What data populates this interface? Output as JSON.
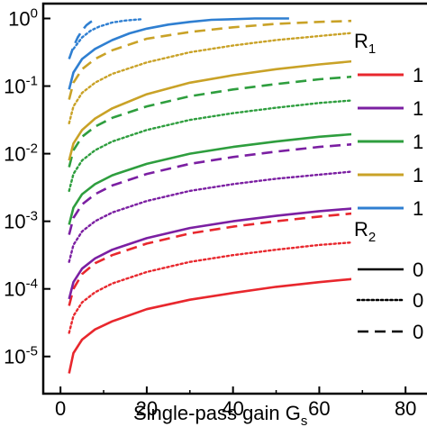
{
  "chart_data": {
    "type": "line",
    "xlabel": "Single-pass gain G",
    "xlabel_subscript": "s",
    "y_scale": "log",
    "xlim": [
      -4,
      95
    ],
    "ylim_log10": [
      -5.55,
      0.22
    ],
    "x_ticks": [
      {
        "value": 0,
        "label": "0"
      },
      {
        "value": 20,
        "label": "20"
      },
      {
        "value": 40,
        "label": "40"
      },
      {
        "value": 60,
        "label": "60"
      },
      {
        "value": 80,
        "label": "80"
      }
    ],
    "y_ticks": [
      {
        "log10": 0,
        "base": "10",
        "exp": "0"
      },
      {
        "log10": -1,
        "base": "10",
        "exp": "-1"
      },
      {
        "log10": -2,
        "base": "10",
        "exp": "-2"
      },
      {
        "log10": -3,
        "base": "10",
        "exp": "-3"
      },
      {
        "log10": -4,
        "base": "10",
        "exp": "-4"
      },
      {
        "log10": -5,
        "base": "10",
        "exp": "-5"
      }
    ],
    "grid": false,
    "legend": {
      "position": "right",
      "r1_title": "R",
      "r1_sub": "1",
      "r2_title": "R",
      "r2_sub": "2",
      "r1_entries": [
        {
          "label": "1",
          "color": "#e8272d"
        },
        {
          "label": "1",
          "color": "#7b1fa2"
        },
        {
          "label": "1",
          "color": "#2e9e3e"
        },
        {
          "label": "1",
          "color": "#c9a227"
        },
        {
          "label": "1",
          "color": "#2f7fd1"
        }
      ],
      "r2_entries": [
        {
          "label": "0",
          "dash": "solid"
        },
        {
          "label": "0",
          "dash": "dotted"
        },
        {
          "label": "0",
          "dash": "dashed"
        }
      ]
    },
    "series": [
      {
        "color": "#e8272d",
        "dash": "solid",
        "x": [
          2,
          3,
          5,
          8,
          12,
          20,
          30,
          40,
          50,
          60,
          70
        ],
        "y": [
          -5.25,
          -4.95,
          -4.75,
          -4.6,
          -4.48,
          -4.3,
          -4.16,
          -4.06,
          -3.97,
          -3.9,
          -3.84
        ]
      },
      {
        "color": "#e8272d",
        "dash": "dotted",
        "x": [
          2,
          3,
          5,
          8,
          12,
          20,
          30,
          40,
          50,
          60,
          70
        ],
        "y": [
          -4.65,
          -4.4,
          -4.2,
          -4.05,
          -3.92,
          -3.75,
          -3.6,
          -3.5,
          -3.42,
          -3.35,
          -3.3
        ]
      },
      {
        "color": "#e8272d",
        "dash": "dashed",
        "x": [
          2,
          3,
          5,
          8,
          12,
          20,
          30,
          40,
          50,
          60,
          70
        ],
        "y": [
          -4.25,
          -4.0,
          -3.78,
          -3.62,
          -3.5,
          -3.33,
          -3.18,
          -3.08,
          -3.0,
          -2.93,
          -2.87
        ]
      },
      {
        "color": "#7b1fa2",
        "dash": "solid",
        "x": [
          2,
          3,
          5,
          8,
          12,
          20,
          30,
          40,
          50,
          60,
          70
        ],
        "y": [
          -4.15,
          -3.9,
          -3.7,
          -3.55,
          -3.42,
          -3.25,
          -3.1,
          -3.0,
          -2.92,
          -2.85,
          -2.8
        ]
      },
      {
        "color": "#7b1fa2",
        "dash": "dotted",
        "x": [
          2,
          3,
          5,
          8,
          12,
          20,
          30,
          40,
          50,
          60,
          70
        ],
        "y": [
          -3.6,
          -3.35,
          -3.15,
          -3.0,
          -2.87,
          -2.7,
          -2.55,
          -2.45,
          -2.37,
          -2.31,
          -2.25
        ]
      },
      {
        "color": "#7b1fa2",
        "dash": "dashed",
        "x": [
          2,
          3,
          5,
          8,
          12,
          20,
          30,
          40,
          50,
          60,
          70
        ],
        "y": [
          -3.2,
          -2.95,
          -2.75,
          -2.6,
          -2.47,
          -2.3,
          -2.15,
          -2.05,
          -1.97,
          -1.9,
          -1.85
        ]
      },
      {
        "color": "#2e9e3e",
        "dash": "solid",
        "x": [
          2,
          3,
          5,
          8,
          12,
          20,
          30,
          40,
          50,
          60,
          70
        ],
        "y": [
          -3.05,
          -2.8,
          -2.6,
          -2.45,
          -2.32,
          -2.15,
          -2.0,
          -1.9,
          -1.82,
          -1.75,
          -1.7
        ]
      },
      {
        "color": "#2e9e3e",
        "dash": "dotted",
        "x": [
          2,
          3,
          5,
          8,
          12,
          20,
          30,
          40,
          50,
          60,
          70
        ],
        "y": [
          -2.55,
          -2.3,
          -2.1,
          -1.95,
          -1.82,
          -1.65,
          -1.5,
          -1.4,
          -1.32,
          -1.25,
          -1.2
        ]
      },
      {
        "color": "#2e9e3e",
        "dash": "dashed",
        "x": [
          2,
          3,
          5,
          8,
          12,
          20,
          30,
          40,
          50,
          60,
          70
        ],
        "y": [
          -2.2,
          -1.95,
          -1.75,
          -1.6,
          -1.47,
          -1.3,
          -1.15,
          -1.05,
          -0.97,
          -0.9,
          -0.85
        ]
      },
      {
        "color": "#c9a227",
        "dash": "solid",
        "x": [
          2,
          3,
          5,
          8,
          12,
          20,
          30,
          40,
          50,
          60,
          70
        ],
        "y": [
          -2.1,
          -1.85,
          -1.65,
          -1.48,
          -1.33,
          -1.12,
          -0.95,
          -0.84,
          -0.75,
          -0.68,
          -0.62
        ]
      },
      {
        "color": "#c9a227",
        "dash": "dotted",
        "x": [
          2,
          3,
          5,
          8,
          12,
          20,
          30,
          40,
          50,
          60,
          70
        ],
        "y": [
          -1.55,
          -1.3,
          -1.1,
          -0.95,
          -0.82,
          -0.65,
          -0.5,
          -0.4,
          -0.32,
          -0.26,
          -0.2
        ]
      },
      {
        "color": "#c9a227",
        "dash": "dashed",
        "x": [
          2,
          3,
          5,
          8,
          12,
          20,
          30,
          40,
          50,
          60,
          70
        ],
        "y": [
          -1.2,
          -0.95,
          -0.75,
          -0.6,
          -0.47,
          -0.3,
          -0.2,
          -0.13,
          -0.08,
          -0.05,
          -0.03
        ]
      },
      {
        "color": "#2f7fd1",
        "dash": "solid",
        "x": [
          2,
          3,
          5,
          8,
          12,
          16,
          20,
          25,
          30,
          35,
          40,
          45,
          50,
          53
        ],
        "y": [
          -1.05,
          -0.8,
          -0.6,
          -0.45,
          -0.32,
          -0.22,
          -0.15,
          -0.09,
          -0.05,
          -0.02,
          -0.01,
          0.0,
          0.0,
          0.0
        ]
      },
      {
        "color": "#2f7fd1",
        "dash": "dotted",
        "x": [
          3,
          5,
          7,
          9,
          12,
          15,
          17,
          19
        ],
        "y": [
          -0.45,
          -0.28,
          -0.18,
          -0.12,
          -0.06,
          -0.03,
          -0.02,
          -0.01
        ]
      },
      {
        "color": "#2f7fd1",
        "dash": "dashed",
        "x": [
          2,
          3,
          4,
          5,
          6,
          7,
          8
        ],
        "y": [
          -0.6,
          -0.42,
          -0.28,
          -0.18,
          -0.1,
          -0.05,
          -0.02
        ]
      }
    ]
  }
}
